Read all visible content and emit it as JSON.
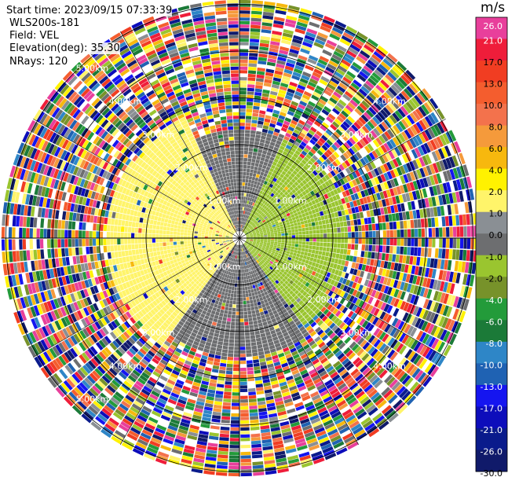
{
  "header": {
    "start_time": "Start time: 2023/09/15 07:33:39",
    "instrument": "WLS200s-181",
    "field": "Field: VEL",
    "elevation": "Elevation(deg): 35.30",
    "nrays": "NRays: 120"
  },
  "colorbar": {
    "unit": "m/s",
    "levels": [
      {
        "label": "26.0",
        "color": "#e83f9b"
      },
      {
        "label": "21.0",
        "color": "#ef1d3a"
      },
      {
        "label": "17.0",
        "color": "#f13d22"
      },
      {
        "label": "13.0",
        "color": "#f45d2e"
      },
      {
        "label": "10.0",
        "color": "#f3724c"
      },
      {
        "label": "8.0",
        "color": "#f59a3b"
      },
      {
        "label": "6.0",
        "color": "#f7b80e"
      },
      {
        "label": "4.0",
        "color": "#fff200"
      },
      {
        "label": "2.0",
        "color": "#fff46a"
      },
      {
        "label": "1.0",
        "color": "#8a8f94"
      },
      {
        "label": "0.0",
        "color": "#6d6e70"
      },
      {
        "label": "-1.0",
        "color": "#9ac52f"
      },
      {
        "label": "-2.0",
        "color": "#77922a"
      },
      {
        "label": "-4.0",
        "color": "#239b3a"
      },
      {
        "label": "-6.0",
        "color": "#1b7a38"
      },
      {
        "label": "-8.0",
        "color": "#2e86c7"
      },
      {
        "label": "-10.0",
        "color": "#1f62b3"
      },
      {
        "label": "-13.0",
        "color": "#1515f0"
      },
      {
        "label": "-17.0",
        "color": "#0d0dbb"
      },
      {
        "label": "-21.0",
        "color": "#0a1b8c"
      },
      {
        "label": "-26.0",
        "color": "#101a6a"
      },
      {
        "label": "-30.0",
        "color": ""
      }
    ]
  },
  "chart_data": {
    "type": "heatmap",
    "projection": "polar (PPI)",
    "field": "VEL",
    "elevation_deg": 35.3,
    "n_rays": 120,
    "range_rings_km": [
      1.0,
      2.0,
      3.0,
      4.0,
      5.0
    ],
    "ring_labels": [
      {
        "text": "1.00km",
        "angle_deg": 45,
        "ring_km": 1.0
      },
      {
        "text": "1.00km",
        "angle_deg": 135,
        "ring_km": 1.0
      },
      {
        "text": "1.00km",
        "angle_deg": 225,
        "ring_km": 1.0
      },
      {
        "text": "1.00km",
        "angle_deg": 315,
        "ring_km": 1.0
      },
      {
        "text": "2.00km",
        "angle_deg": 45,
        "ring_km": 2.0
      },
      {
        "text": "2.00km",
        "angle_deg": 135,
        "ring_km": 2.0
      },
      {
        "text": "2.00km",
        "angle_deg": 225,
        "ring_km": 2.0
      },
      {
        "text": "2.00km",
        "angle_deg": 315,
        "ring_km": 2.0
      },
      {
        "text": "3.00km",
        "angle_deg": 45,
        "ring_km": 3.0
      },
      {
        "text": "3.00km",
        "angle_deg": 135,
        "ring_km": 3.0
      },
      {
        "text": "3.00km",
        "angle_deg": 225,
        "ring_km": 3.0
      },
      {
        "text": "3.00km",
        "angle_deg": 315,
        "ring_km": 3.0
      },
      {
        "text": "4.00km",
        "angle_deg": 45,
        "ring_km": 4.0
      },
      {
        "text": "4.00km",
        "angle_deg": 135,
        "ring_km": 4.0
      },
      {
        "text": "4.00km",
        "angle_deg": 225,
        "ring_km": 4.0
      },
      {
        "text": "4.00km",
        "angle_deg": 315,
        "ring_km": 4.0
      },
      {
        "text": "5.00km",
        "angle_deg": 315,
        "ring_km": 5.0
      },
      {
        "text": "5.00km",
        "angle_deg": 225,
        "ring_km": 5.0
      }
    ],
    "max_range_km": 5.1,
    "regions": [
      {
        "name": "clean-west",
        "azimuth_from_deg": 215,
        "azimuth_to_deg": 335,
        "range_from_km": 0.1,
        "range_to_km": 2.8,
        "value_mps": 2.0
      },
      {
        "name": "clean-north",
        "azimuth_from_deg": 335,
        "azimuth_to_deg": 25,
        "range_from_km": 0.1,
        "range_to_km": 2.3,
        "value_mps": 0.0
      },
      {
        "name": "clean-east",
        "azimuth_from_deg": 25,
        "azimuth_to_deg": 145,
        "range_from_km": 0.1,
        "range_to_km": 2.3,
        "value_mps": -1.0
      },
      {
        "name": "clean-south",
        "azimuth_from_deg": 145,
        "azimuth_to_deg": 215,
        "range_from_km": 0.1,
        "range_to_km": 2.5,
        "value_mps": 0.0
      },
      {
        "name": "noise-outer",
        "azimuth_from_deg": 0,
        "azimuth_to_deg": 360,
        "range_from_km": 2.3,
        "range_to_km": 5.1,
        "value_mps": "mixed"
      }
    ]
  }
}
